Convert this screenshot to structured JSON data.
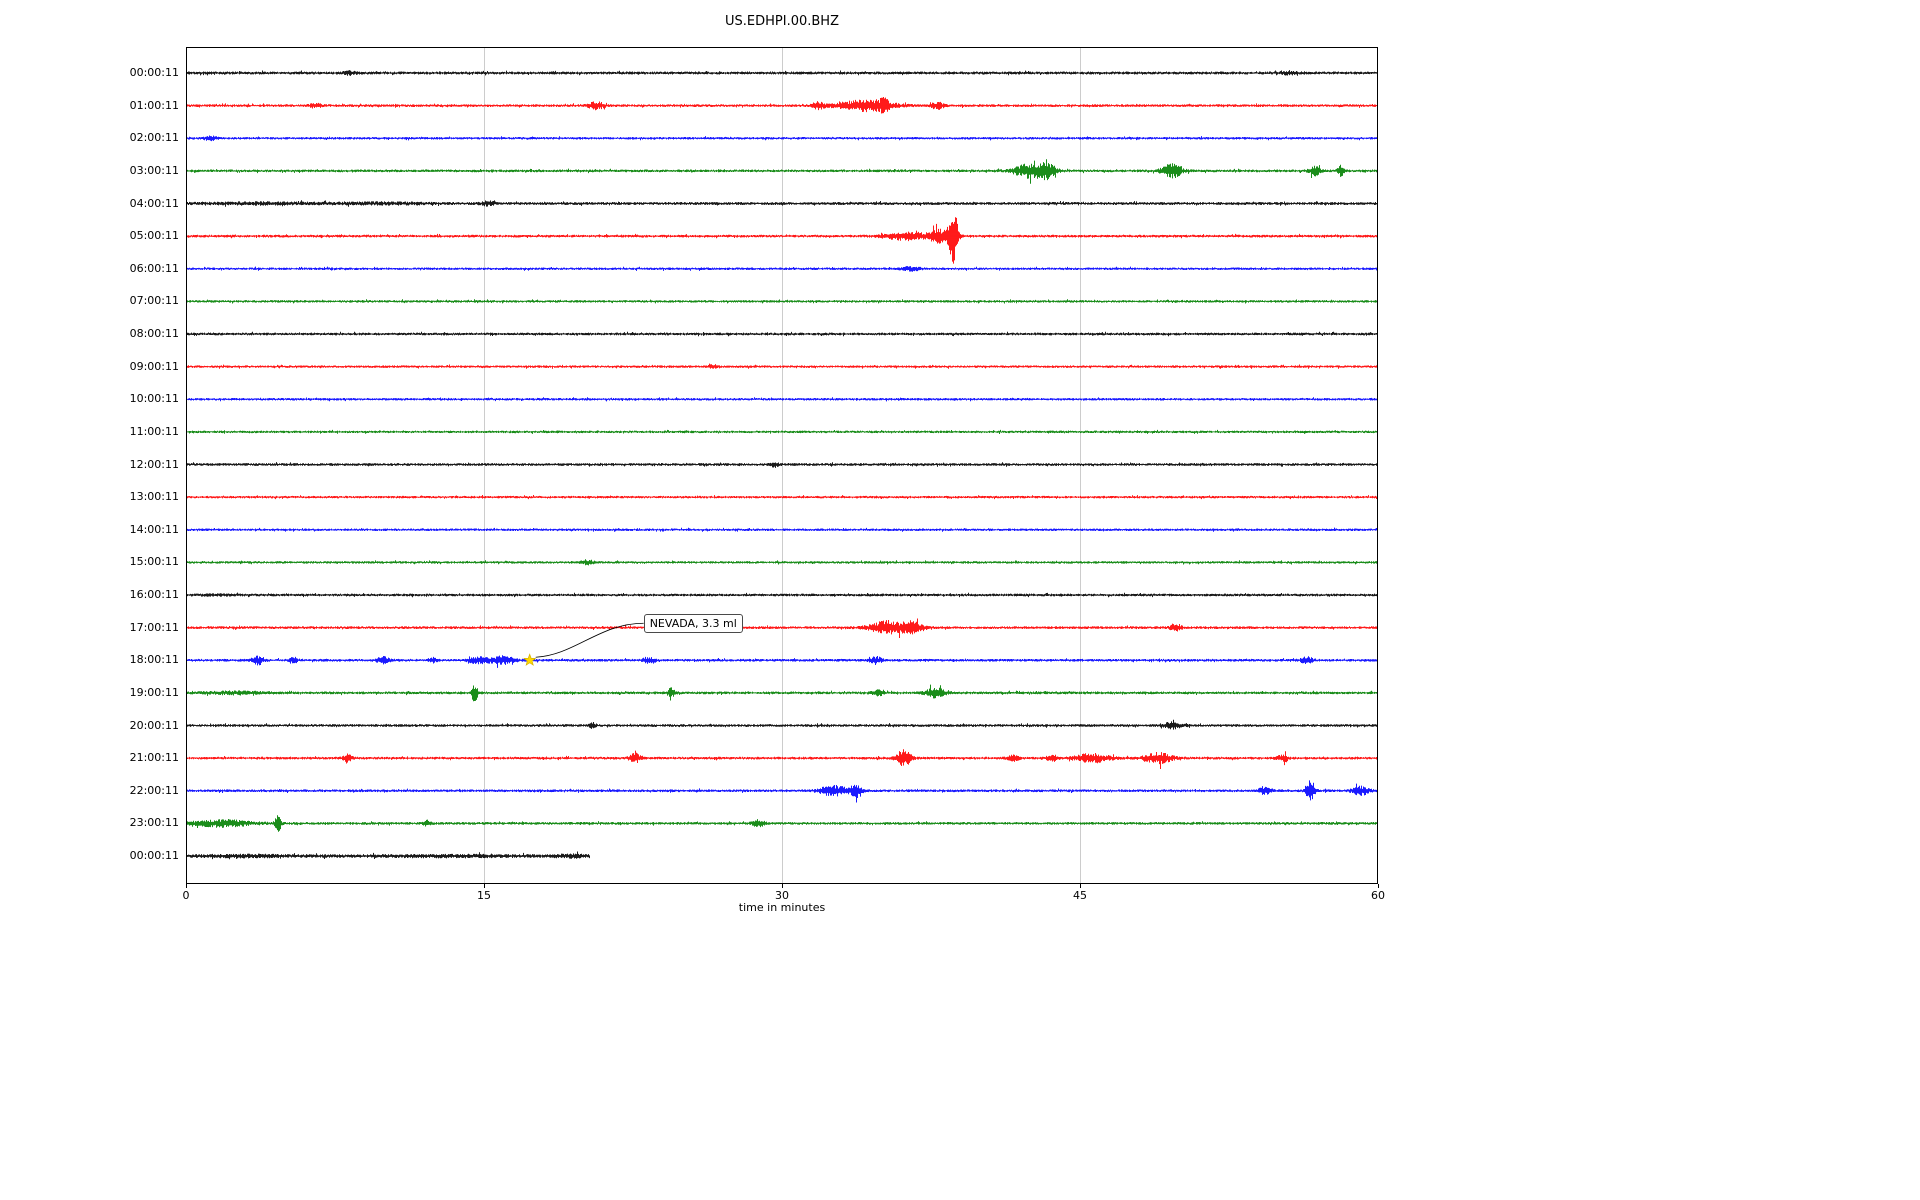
{
  "chart_data": {
    "type": "line",
    "subtype": "helicorder-dayplot",
    "title": "US.EDHPI.00.BHZ",
    "xlabel": "time in minutes",
    "xlim": [
      0,
      60
    ],
    "x_ticks": [
      0,
      15,
      30,
      45,
      60
    ],
    "grid_minutes": [
      15,
      30,
      45
    ],
    "minutes_per_row": 60,
    "grid_on": true,
    "colors": {
      "black": "#000000",
      "red": "#ff0000",
      "blue": "#0000ff",
      "green": "#008000",
      "grid": "#cccccc",
      "star": "#ffd700",
      "star_edge": "#d4af00"
    },
    "color_cycle": [
      "black",
      "red",
      "blue",
      "green"
    ],
    "rows": [
      {
        "label": "00:00:11",
        "color": "black",
        "base_amp": 1.4,
        "events": [
          {
            "m": 8.2,
            "w": 0.3,
            "a": 1.5
          },
          {
            "m": 55.5,
            "w": 0.4,
            "a": 1.5
          }
        ]
      },
      {
        "label": "01:00:11",
        "color": "red",
        "base_amp": 1.3,
        "events": [
          {
            "m": 6.5,
            "w": 0.3,
            "a": 2
          },
          {
            "m": 20.6,
            "w": 0.4,
            "a": 3.5
          },
          {
            "m": 31.8,
            "w": 0.3,
            "a": 3
          },
          {
            "m": 34.2,
            "w": 1.4,
            "a": 5
          },
          {
            "m": 35.1,
            "w": 0.25,
            "a": 4
          },
          {
            "m": 37.8,
            "w": 0.3,
            "a": 3.5
          }
        ]
      },
      {
        "label": "02:00:11",
        "color": "blue",
        "base_amp": 1.2,
        "events": [
          {
            "m": 1.2,
            "w": 0.3,
            "a": 2
          }
        ]
      },
      {
        "label": "03:00:11",
        "color": "green",
        "base_amp": 1.3,
        "events": [
          {
            "m": 42.6,
            "w": 0.9,
            "a": 7
          },
          {
            "m": 43.4,
            "w": 0.3,
            "a": 5
          },
          {
            "m": 49.6,
            "w": 0.5,
            "a": 6.5
          },
          {
            "m": 56.8,
            "w": 0.3,
            "a": 4
          },
          {
            "m": 58.1,
            "w": 0.15,
            "a": 5
          }
        ]
      },
      {
        "label": "04:00:11",
        "color": "black",
        "base_amp": 1.4,
        "events": [
          {
            "m": 4,
            "w": 3,
            "a": 0.8
          },
          {
            "m": 10,
            "w": 2,
            "a": 0.8
          },
          {
            "m": 15.2,
            "w": 0.3,
            "a": 2
          }
        ]
      },
      {
        "label": "05:00:11",
        "color": "red",
        "base_amp": 1.3,
        "events": [
          {
            "m": 36.3,
            "w": 1.2,
            "a": 3.5
          },
          {
            "m": 37.9,
            "w": 0.5,
            "a": 6
          },
          {
            "m": 38.6,
            "w": 0.22,
            "a": 27
          }
        ]
      },
      {
        "label": "06:00:11",
        "color": "blue",
        "base_amp": 1.2,
        "events": [
          {
            "m": 36.5,
            "w": 0.4,
            "a": 2
          }
        ]
      },
      {
        "label": "07:00:11",
        "color": "green",
        "base_amp": 1.2,
        "events": []
      },
      {
        "label": "08:00:11",
        "color": "black",
        "base_amp": 1.3,
        "events": []
      },
      {
        "label": "09:00:11",
        "color": "red",
        "base_amp": 1.2,
        "events": [
          {
            "m": 26.5,
            "w": 0.2,
            "a": 2
          }
        ]
      },
      {
        "label": "10:00:11",
        "color": "blue",
        "base_amp": 1.2,
        "events": []
      },
      {
        "label": "11:00:11",
        "color": "green",
        "base_amp": 1.2,
        "events": []
      },
      {
        "label": "12:00:11",
        "color": "black",
        "base_amp": 1.3,
        "events": [
          {
            "m": 29.6,
            "w": 0.2,
            "a": 2
          }
        ]
      },
      {
        "label": "13:00:11",
        "color": "red",
        "base_amp": 1.2,
        "events": []
      },
      {
        "label": "14:00:11",
        "color": "blue",
        "base_amp": 1.2,
        "events": []
      },
      {
        "label": "15:00:11",
        "color": "green",
        "base_amp": 1.2,
        "events": [
          {
            "m": 20.2,
            "w": 0.3,
            "a": 2
          }
        ]
      },
      {
        "label": "16:00:11",
        "color": "black",
        "base_amp": 1.3,
        "events": [
          {
            "m": 1.5,
            "w": 1,
            "a": 0.5
          }
        ]
      },
      {
        "label": "17:00:11",
        "color": "red",
        "base_amp": 1.3,
        "events": [
          {
            "m": 35.3,
            "w": 0.9,
            "a": 6
          },
          {
            "m": 36.6,
            "w": 0.5,
            "a": 5
          },
          {
            "m": 49.8,
            "w": 0.25,
            "a": 4
          }
        ]
      },
      {
        "label": "18:00:11",
        "color": "blue",
        "base_amp": 1.3,
        "events": [
          {
            "m": 3.6,
            "w": 0.3,
            "a": 4
          },
          {
            "m": 5.4,
            "w": 0.2,
            "a": 2.5
          },
          {
            "m": 9.9,
            "w": 0.3,
            "a": 3
          },
          {
            "m": 12.4,
            "w": 0.2,
            "a": 2.5
          },
          {
            "m": 14.7,
            "w": 0.5,
            "a": 3
          },
          {
            "m": 15.9,
            "w": 0.6,
            "a": 3.5
          },
          {
            "m": 23.3,
            "w": 0.3,
            "a": 3
          },
          {
            "m": 34.7,
            "w": 0.3,
            "a": 3.5
          },
          {
            "m": 56.4,
            "w": 0.3,
            "a": 3
          }
        ]
      },
      {
        "label": "19:00:11",
        "color": "green",
        "base_amp": 1.3,
        "events": [
          {
            "m": 2.5,
            "w": 1.5,
            "a": 1.2
          },
          {
            "m": 14.5,
            "w": 0.15,
            "a": 9
          },
          {
            "m": 24.4,
            "w": 0.2,
            "a": 4
          },
          {
            "m": 34.8,
            "w": 0.3,
            "a": 2.5
          },
          {
            "m": 37.7,
            "w": 0.5,
            "a": 4.5
          }
        ]
      },
      {
        "label": "20:00:11",
        "color": "black",
        "base_amp": 1.3,
        "events": [
          {
            "m": 20.4,
            "w": 0.2,
            "a": 2.5
          },
          {
            "m": 49.6,
            "w": 0.5,
            "a": 3
          }
        ]
      },
      {
        "label": "21:00:11",
        "color": "red",
        "base_amp": 1.3,
        "events": [
          {
            "m": 8.1,
            "w": 0.2,
            "a": 4
          },
          {
            "m": 22.6,
            "w": 0.3,
            "a": 4
          },
          {
            "m": 36.1,
            "w": 0.35,
            "a": 8
          },
          {
            "m": 41.6,
            "w": 0.3,
            "a": 2.5
          },
          {
            "m": 43.6,
            "w": 0.3,
            "a": 2.5
          },
          {
            "m": 45.6,
            "w": 0.9,
            "a": 4
          },
          {
            "m": 48.9,
            "w": 0.7,
            "a": 5
          },
          {
            "m": 55.2,
            "w": 0.3,
            "a": 3
          }
        ]
      },
      {
        "label": "22:00:11",
        "color": "blue",
        "base_amp": 1.3,
        "events": [
          {
            "m": 32.6,
            "w": 0.7,
            "a": 5
          },
          {
            "m": 33.7,
            "w": 0.3,
            "a": 6
          },
          {
            "m": 54.3,
            "w": 0.3,
            "a": 4
          },
          {
            "m": 56.6,
            "w": 0.2,
            "a": 10
          },
          {
            "m": 59.1,
            "w": 0.4,
            "a": 4
          }
        ]
      },
      {
        "label": "23:00:11",
        "color": "green",
        "base_amp": 1.3,
        "events": [
          {
            "m": 1.8,
            "w": 1.5,
            "a": 3
          },
          {
            "m": 4.6,
            "w": 0.15,
            "a": 8
          },
          {
            "m": 12.1,
            "w": 0.2,
            "a": 2.5
          },
          {
            "m": 28.8,
            "w": 0.3,
            "a": 3
          }
        ]
      },
      {
        "label": "00:00:11",
        "color": "black",
        "base_amp": 1.7,
        "end_min": 20.3,
        "events": [
          {
            "m": 3,
            "w": 2,
            "a": 0.6
          },
          {
            "m": 13,
            "w": 3,
            "a": 0.6
          },
          {
            "m": 19.5,
            "w": 0.5,
            "a": 1
          }
        ]
      }
    ],
    "annotations": [
      {
        "text": "NEVADA, 3.3 ml",
        "row_index": 18,
        "minute": 17.3,
        "marker": "star"
      }
    ]
  }
}
